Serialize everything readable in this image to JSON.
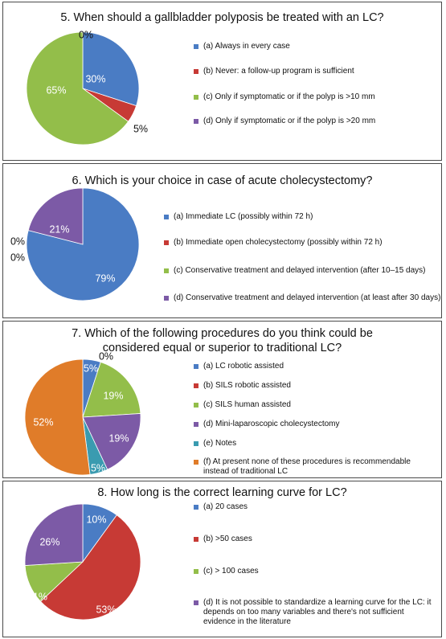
{
  "chart_data": [
    {
      "type": "pie",
      "title": "5. When should a gallbladder polyposis be treated with an LC?",
      "series": [
        {
          "label": "(a) Always in every case",
          "value": 30,
          "display": "30%",
          "color": "#4a7cc4"
        },
        {
          "label": "(b) Never: a follow-up program is sufficient",
          "value": 5,
          "display": "5%",
          "color": "#c73a35"
        },
        {
          "label": "(c) Only if symptomatic or if the polyp is >10 mm",
          "value": 65,
          "display": "65%",
          "color": "#93be4a"
        },
        {
          "label": "(d) Only if symptomatic or if the polyp is >20 mm",
          "value": 0,
          "display": "0%",
          "color": "#7c5aa6"
        }
      ]
    },
    {
      "type": "pie",
      "title": "6. Which is your choice in case of acute cholecystectomy?",
      "series": [
        {
          "label": "(a) Immediate LC (possibly within 72 h)",
          "value": 79,
          "display": "79%",
          "color": "#4a7cc4"
        },
        {
          "label": "(b) Immediate open cholecystectomy (possibly within 72 h)",
          "value": 0,
          "display": "0%",
          "color": "#c73a35"
        },
        {
          "label": "(c) Conservative treatment and delayed intervention (after 10–15 days)",
          "value": 0,
          "display": "0%",
          "color": "#93be4a"
        },
        {
          "label": "(d) Conservative treatment and delayed intervention (at least after 30 days)",
          "value": 21,
          "display": "21%",
          "color": "#7c5aa6"
        }
      ]
    },
    {
      "type": "pie",
      "title": "7. Which of the following procedures do you think could be considered equal or superior to traditional LC?",
      "title_lines": [
        "7. Which of the following procedures do you think could be",
        "considered equal or superior to traditional LC?"
      ],
      "series": [
        {
          "label": "(a) LC robotic assisted",
          "value": 5,
          "display": "5%",
          "color": "#4a7cc4"
        },
        {
          "label": "(b) SILS robotic assisted",
          "value": 0,
          "display": "0%",
          "color": "#c73a35"
        },
        {
          "label": "(c) SILS human assisted",
          "value": 19,
          "display": "19%",
          "color": "#93be4a"
        },
        {
          "label": "(d) Mini-laparoscopic cholecystectomy",
          "value": 19,
          "display": "19%",
          "color": "#7c5aa6"
        },
        {
          "label": "(e) Notes",
          "value": 5,
          "display": "5%",
          "color": "#3a9bb0"
        },
        {
          "label": "(f) At present none of these procedures is recommendable instead of traditional LC",
          "value": 52,
          "display": "52%",
          "color": "#e07c29"
        }
      ]
    },
    {
      "type": "pie",
      "title": "8. How long is the correct learning curve for LC?",
      "series": [
        {
          "label": "(a) 20 cases",
          "value": 10,
          "display": "10%",
          "color": "#4a7cc4"
        },
        {
          "label": "(b) >50 cases",
          "value": 53,
          "display": "53%",
          "color": "#c73a35"
        },
        {
          "label": "(c) > 100 cases",
          "value": 11,
          "display": "11%",
          "color": "#93be4a"
        },
        {
          "label": "(d) It is not possible to standardize a learning curve for the LC: it depends on too many variables and there's not sufficient evidence in the literature",
          "value": 26,
          "display": "26%",
          "color": "#7c5aa6"
        }
      ]
    }
  ]
}
